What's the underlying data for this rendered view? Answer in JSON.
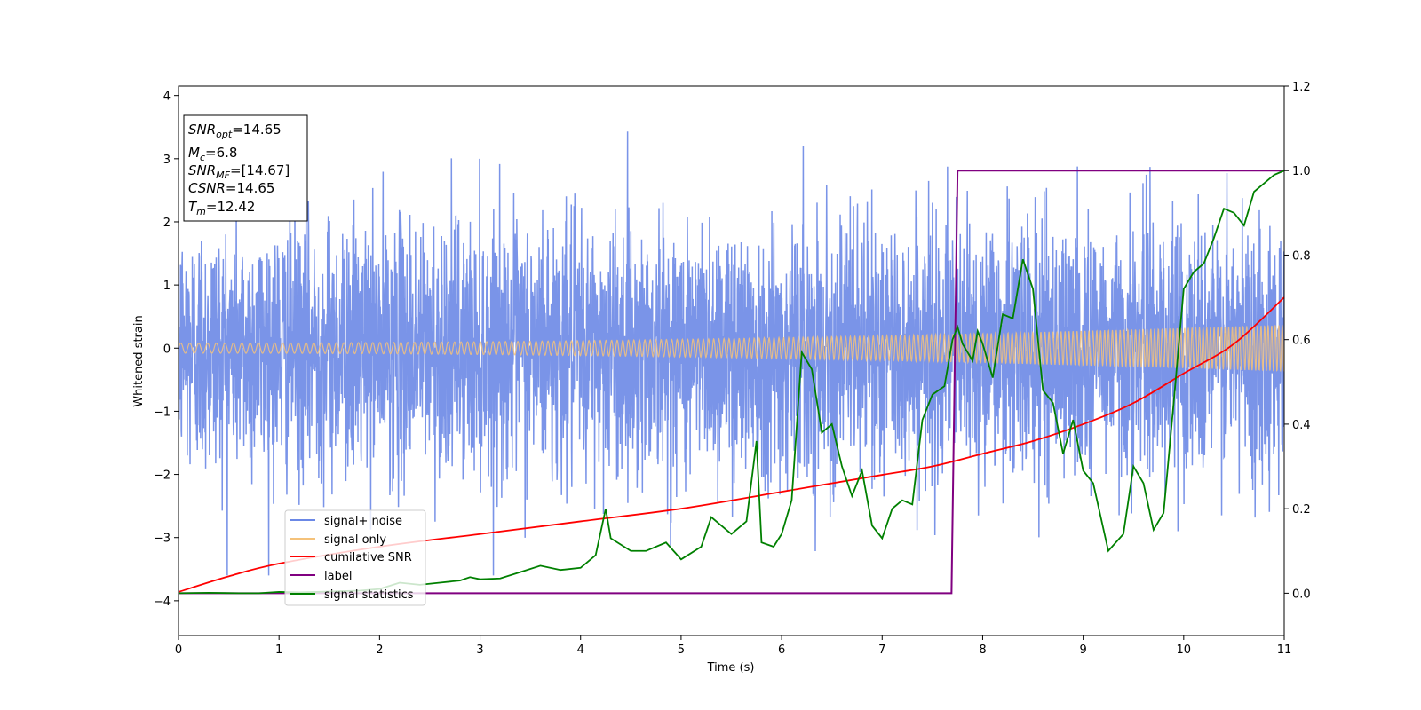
{
  "chart_data": {
    "type": "line",
    "title": "",
    "xlabel": "Time (s)",
    "ylabel": "Whitened strain",
    "y2label": "",
    "xlim": [
      0,
      11
    ],
    "ylim": [
      -4.55,
      4.15
    ],
    "y2lim": [
      -0.1,
      1.2
    ],
    "xticks": [
      0,
      1,
      2,
      3,
      4,
      5,
      6,
      7,
      8,
      9,
      10,
      11
    ],
    "yticks": [
      -4,
      -3,
      -2,
      -1,
      0,
      1,
      2,
      3,
      4
    ],
    "y2ticks": [
      0.0,
      0.2,
      0.4,
      0.6,
      0.8,
      1.0,
      1.2
    ],
    "y2tick_labels": [
      "0.0",
      "0.2",
      "0.4",
      "0.6",
      "0.8",
      "1.0",
      "1.2"
    ],
    "grid": false,
    "legend_position": "lower-left",
    "colors": {
      "noise": "#6b88e6",
      "signal": "#f5c27a",
      "csnr": "#ff0000",
      "label": "#800080",
      "stats": "#008000"
    },
    "annotation": {
      "lines": [
        {
          "base": "SNR",
          "sub": "opt",
          "rest": "=14.65"
        },
        {
          "base": "M",
          "sub": "c",
          "rest": "=6.8"
        },
        {
          "base": "SNR",
          "sub": "MF",
          "rest": "=[14.67]"
        },
        {
          "base": "CSNR",
          "sub": "",
          "rest": "=14.65"
        },
        {
          "base": "T",
          "sub": "m",
          "rest": "=12.42"
        }
      ]
    },
    "series": [
      {
        "name": "signal+ noise",
        "axis": "left",
        "description_envelope": {
          "approx_min": -3.6,
          "approx_max": 3.8,
          "std": 1.0
        },
        "x_range": [
          0,
          11
        ]
      },
      {
        "name": "signal only",
        "axis": "left",
        "amplitude_start": 0.08,
        "amplitude_end": 0.37,
        "x_range": [
          0,
          11
        ]
      },
      {
        "name": "cumilative SNR",
        "axis": "right",
        "x": [
          0,
          0.5,
          1,
          2,
          3,
          4,
          5,
          6,
          7,
          7.5,
          8,
          8.5,
          9,
          9.5,
          10,
          10.5,
          11
        ],
        "values": [
          0.003,
          0.04,
          0.07,
          0.11,
          0.14,
          0.17,
          0.2,
          0.24,
          0.28,
          0.3,
          0.33,
          0.36,
          0.4,
          0.45,
          0.52,
          0.59,
          0.7
        ]
      },
      {
        "name": "label",
        "axis": "right",
        "x": [
          0,
          7.69,
          7.75,
          11
        ],
        "values": [
          0.0,
          0.0,
          1.0,
          1.0
        ]
      },
      {
        "name": "signal statistics",
        "axis": "right",
        "x": [
          0,
          0.3,
          0.6,
          0.8,
          1.0,
          1.2,
          1.5,
          1.8,
          2.0,
          2.2,
          2.4,
          2.6,
          2.8,
          2.9,
          3.0,
          3.2,
          3.4,
          3.6,
          3.8,
          4.0,
          4.15,
          4.25,
          4.3,
          4.5,
          4.65,
          4.85,
          5.0,
          5.2,
          5.3,
          5.5,
          5.65,
          5.75,
          5.8,
          5.92,
          6.0,
          6.1,
          6.2,
          6.3,
          6.4,
          6.5,
          6.6,
          6.7,
          6.8,
          6.9,
          7.0,
          7.1,
          7.2,
          7.3,
          7.4,
          7.5,
          7.62,
          7.7,
          7.75,
          7.8,
          7.9,
          7.95,
          8.0,
          8.1,
          8.2,
          8.3,
          8.4,
          8.5,
          8.6,
          8.7,
          8.8,
          8.9,
          9.0,
          9.1,
          9.25,
          9.4,
          9.5,
          9.6,
          9.7,
          9.8,
          9.9,
          10.0,
          10.1,
          10.2,
          10.3,
          10.4,
          10.5,
          10.6,
          10.7,
          10.8,
          10.9,
          11.0
        ],
        "values": [
          0.0,
          0.001,
          0.0,
          0.0,
          0.003,
          0.002,
          0.004,
          0.006,
          0.01,
          0.025,
          0.02,
          0.025,
          0.03,
          0.038,
          0.033,
          0.035,
          0.05,
          0.065,
          0.055,
          0.06,
          0.09,
          0.2,
          0.13,
          0.1,
          0.1,
          0.12,
          0.08,
          0.11,
          0.18,
          0.14,
          0.17,
          0.36,
          0.12,
          0.11,
          0.14,
          0.22,
          0.57,
          0.53,
          0.38,
          0.4,
          0.3,
          0.23,
          0.29,
          0.16,
          0.13,
          0.2,
          0.22,
          0.21,
          0.41,
          0.47,
          0.49,
          0.6,
          0.63,
          0.59,
          0.55,
          0.62,
          0.59,
          0.51,
          0.66,
          0.65,
          0.79,
          0.72,
          0.48,
          0.45,
          0.33,
          0.41,
          0.29,
          0.26,
          0.1,
          0.14,
          0.3,
          0.26,
          0.15,
          0.19,
          0.45,
          0.72,
          0.76,
          0.78,
          0.84,
          0.91,
          0.9,
          0.87,
          0.95,
          0.97,
          0.99,
          1.0
        ]
      }
    ]
  }
}
